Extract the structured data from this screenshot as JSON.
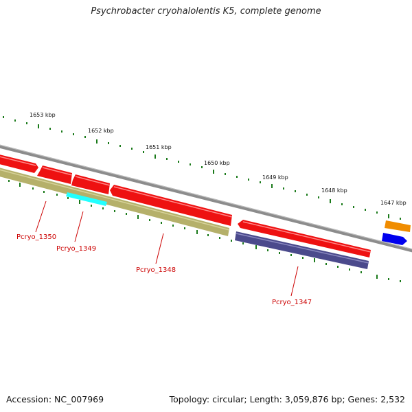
{
  "title": "Psychrobacter cryohalolentis K5, complete genome",
  "footer": {
    "accession": "Accession: NC_007969",
    "summary": "Topology: circular; Length: 3,059,876 bp; Genes: 2,532"
  },
  "ticks": [
    "1653 kbp",
    "1652 kbp",
    "1651 kbp",
    "1650 kbp",
    "1649 kbp",
    "1648 kbp",
    "1647 kbp"
  ],
  "gene_labels": [
    "Pcryo_1350",
    "Pcryo_1349",
    "Pcryo_1348",
    "Pcryo_1347"
  ],
  "colors": {
    "backbone": "#8c8c8c",
    "cds": "#ee1111",
    "gene_olive": "#b5b06a",
    "gene_cyan": "#22ffff",
    "gene_navy": "#4b4a8c",
    "gene_orange": "#f08c00",
    "gene_blue": "#0000ee",
    "ticks": "#1a7a1a",
    "label": "#cc0000"
  }
}
